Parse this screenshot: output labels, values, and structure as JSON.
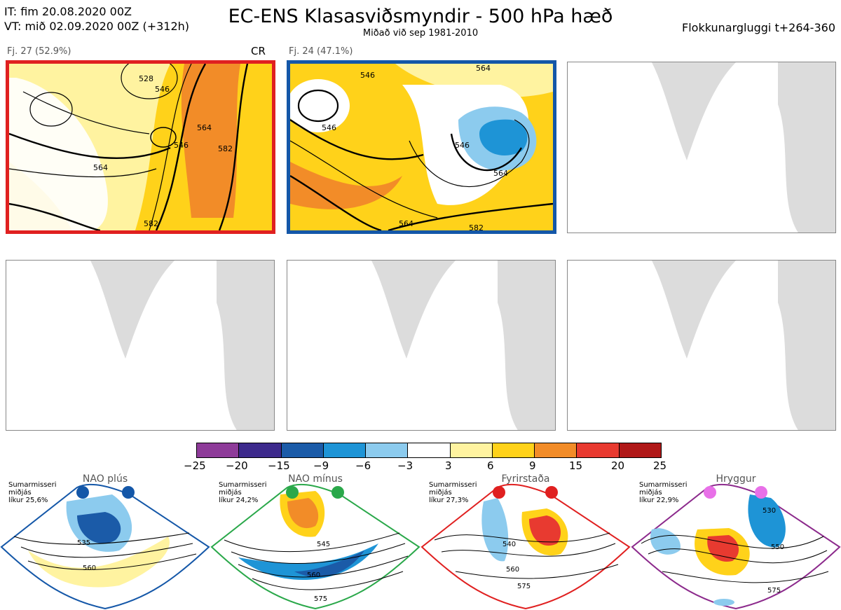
{
  "header": {
    "it_line": "IT: fim 20.08.2020 00Z",
    "vt_line": "VT: mið 02.09.2020 00Z  (+312h)",
    "title": "EC-ENS Klasasviðsmyndir - 500 hPa hæð",
    "subtitle": "Miðað við sep 1981-2010",
    "window": "Flokkunargluggi t+264-360"
  },
  "panels": [
    {
      "label": "Fj. 27 (52.9%)",
      "tag": "CR",
      "border_color": "#e02020",
      "contours": [
        "528",
        "546",
        "546",
        "564",
        "564",
        "582",
        "582"
      ]
    },
    {
      "label": "Fj. 24 (47.1%)",
      "tag": "",
      "border_color": "#1457a8",
      "contours": [
        "546",
        "546",
        "546",
        "564",
        "564",
        "564",
        "582"
      ]
    }
  ],
  "colorbar": {
    "ticks": [
      "−25",
      "−20",
      "−15",
      "−9",
      "−6",
      "−3",
      "3",
      "6",
      "9",
      "15",
      "20",
      "25"
    ],
    "colors": [
      "#8e3b99",
      "#3d2a8c",
      "#1b5ba8",
      "#1e94d6",
      "#8ccbee",
      "#ffffff",
      "#fff3a0",
      "#ffd21a",
      "#f28c28",
      "#e83a30",
      "#b01818"
    ]
  },
  "regimes": [
    {
      "title": "NAO plús",
      "season": "Sumarmisseri",
      "mean": "miðjás",
      "prob": "líkur 25,6%",
      "color": "#1457a8",
      "dot": "#1457a8",
      "contours": [
        "535",
        "560"
      ]
    },
    {
      "title": "NAO mínus",
      "season": "Sumarmisseri",
      "mean": "miðjás",
      "prob": "líkur 24,2%",
      "color": "#2aa84a",
      "dot": "#2aa84a",
      "contours": [
        "545",
        "560",
        "575"
      ]
    },
    {
      "title": "Fyrirstaða",
      "season": "Sumarmisseri",
      "mean": "miðjás",
      "prob": "líkur 27,3%",
      "color": "#e02020",
      "dot": "#e02020",
      "contours": [
        "540",
        "560",
        "575"
      ]
    },
    {
      "title": "Hryggur",
      "season": "Sumarmisseri",
      "mean": "miðjás",
      "prob": "líkur 22,9%",
      "color": "#8c2a8c",
      "dot": "#e870e8",
      "contours": [
        "530",
        "550",
        "575"
      ]
    }
  ]
}
